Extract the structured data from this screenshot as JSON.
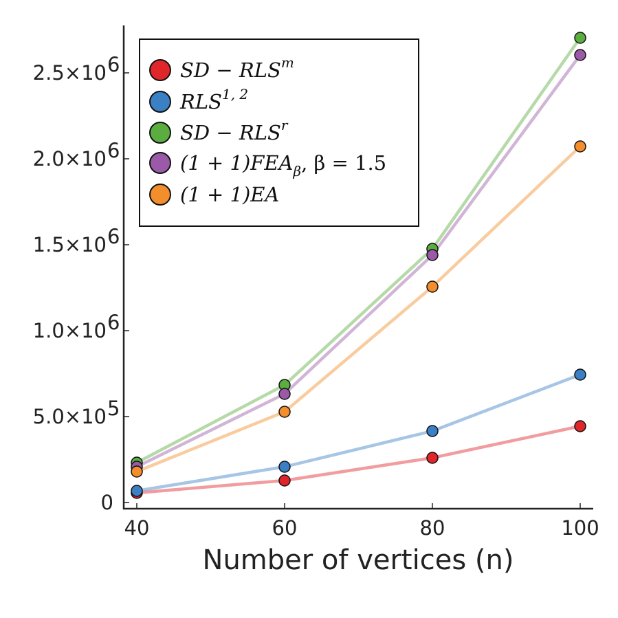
{
  "chart_data": {
    "type": "line",
    "xlabel": "Number of vertices (n)",
    "ylabel": "",
    "x": [
      40,
      60,
      80,
      100
    ],
    "xlim": [
      38,
      102
    ],
    "ylim": [
      -35000,
      2800000
    ],
    "xticks": [
      40,
      60,
      80,
      100
    ],
    "xtick_labels": [
      "40",
      "60",
      "80",
      "100"
    ],
    "yticks": [
      0,
      500000,
      1000000,
      1500000,
      2000000,
      2500000
    ],
    "ytick_labels": [
      {
        "mant": "0",
        "exp": ""
      },
      {
        "mant": "5.0×10",
        "exp": "5"
      },
      {
        "mant": "1.0×10",
        "exp": "6"
      },
      {
        "mant": "1.5×10",
        "exp": "6"
      },
      {
        "mant": "2.0×10",
        "exp": "6"
      },
      {
        "mant": "2.5×10",
        "exp": "6"
      }
    ],
    "grid": false,
    "legend_position": "top-left",
    "series": [
      {
        "name": "SD − RLS^m",
        "label": {
          "base": "SD − RLS",
          "sup": "m"
        },
        "color": "#e0262b",
        "values": [
          56000,
          128000,
          260000,
          444000
        ]
      },
      {
        "name": "RLS^{1,2}",
        "label": {
          "base": "RLS",
          "sup": "1, 2"
        },
        "color": "#3b7fc4",
        "values": [
          68000,
          208000,
          416000,
          744000
        ]
      },
      {
        "name": "SD − RLS^r",
        "label": {
          "base": "SD − RLS",
          "sup": "r"
        },
        "color": "#5aad3e",
        "values": [
          232000,
          684000,
          1476000,
          2704000
        ]
      },
      {
        "name": "(1+1)FEA_β, β = 1.5",
        "label": {
          "base": "(1 + 1)FEA",
          "sub": "β",
          "rest": ", β = 1.5"
        },
        "color": "#9a5aa7",
        "values": [
          208000,
          632000,
          1440000,
          2604000
        ]
      },
      {
        "name": "(1+1)EA",
        "label": {
          "base": "(1 + 1)EA"
        },
        "color": "#f28e2b",
        "values": [
          180000,
          528000,
          1256000,
          2072000
        ]
      }
    ]
  }
}
